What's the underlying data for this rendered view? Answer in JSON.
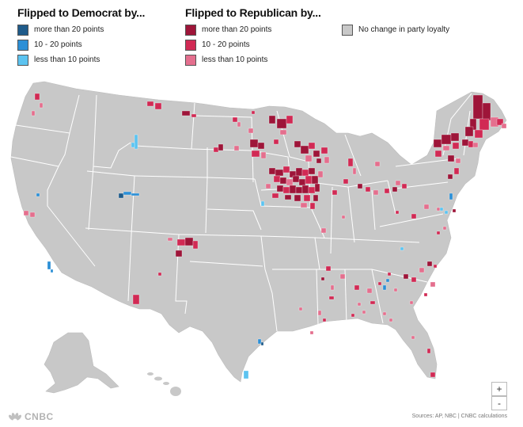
{
  "legend": {
    "dem": {
      "title": "Flipped to Democrat by...",
      "items": [
        {
          "label": "more than 20 points",
          "color": "#1f5b8a"
        },
        {
          "label": "10 - 20 points",
          "color": "#2c8fd6"
        },
        {
          "label": "less than 10 points",
          "color": "#5cc3f0"
        }
      ]
    },
    "rep": {
      "title": "Flipped to Republican by...",
      "items": [
        {
          "label": "more than 20 points",
          "color": "#9e1539"
        },
        {
          "label": "10 - 20 points",
          "color": "#d12a54"
        },
        {
          "label": "less than 10 points",
          "color": "#e46f8e"
        }
      ]
    },
    "nochange": {
      "label": "No change in party loyalty",
      "color": "#c8c8c8"
    }
  },
  "zoom": {
    "in_label": "+",
    "out_label": "-"
  },
  "source": "Sources: AP, NBC | CNBC calculations",
  "logo": "CNBC",
  "map": {
    "land_color": "#c8c8c8",
    "border_color": "#ffffff"
  }
}
